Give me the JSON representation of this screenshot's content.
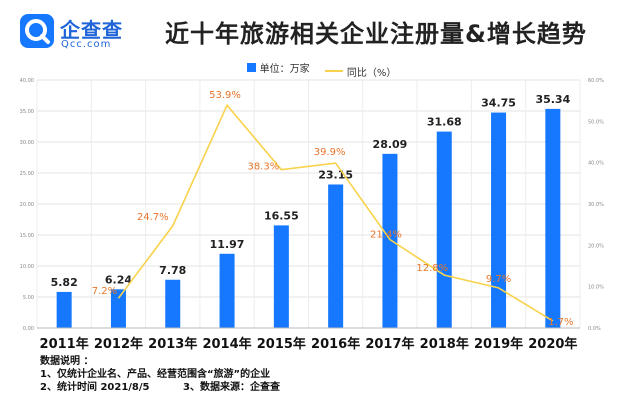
{
  "header": {
    "logo_cn": "企查查",
    "logo_en": "Qcc.com",
    "title": "近十年旅游相关企业注册量&增长趋势"
  },
  "legend": {
    "bar_label": "单位：万家",
    "line_label": "同比（%）"
  },
  "notes": {
    "heading": "数据说明 ：",
    "line1": "1、仅统计企业名、产品、经营范围含“旅游”的企业",
    "line2a": "2、统计时间  2021/8/5",
    "line2b": "3、数据来源：企查查"
  },
  "chart_data": {
    "type": "bar",
    "title": "近十年旅游相关企业注册量&增长趋势",
    "categories": [
      "2011年",
      "2012年",
      "2013年",
      "2014年",
      "2015年",
      "2016年",
      "2017年",
      "2018年",
      "2019年",
      "2020年"
    ],
    "series": [
      {
        "name": "单位：万家",
        "type": "bar",
        "values": [
          5.82,
          6.24,
          7.78,
          11.97,
          16.55,
          23.15,
          28.09,
          31.68,
          34.75,
          35.34
        ],
        "labels": [
          "5.82",
          "6.24",
          "7.78",
          "11.97",
          "16.55",
          "23.15",
          "28.09",
          "31.68",
          "34.75",
          "35.34"
        ],
        "color": "#1677ff"
      },
      {
        "name": "同比（%）",
        "type": "line",
        "values": [
          null,
          7.2,
          24.7,
          53.9,
          38.3,
          39.9,
          21.4,
          12.8,
          9.7,
          1.7
        ],
        "labels": [
          "",
          "7.2%",
          "24.7%",
          "53.9%",
          "38.3%",
          "39.9%",
          "21.4%",
          "12.8%",
          "9.7%",
          "1.7%"
        ],
        "color": "#f8d24b",
        "label_color": "#e8762b"
      }
    ],
    "y_left": {
      "ylim": [
        0,
        40
      ],
      "ticks": [
        "0.00",
        "5.00",
        "10.00",
        "15.00",
        "20.00",
        "25.00",
        "30.00",
        "35.00",
        "40.00"
      ]
    },
    "y_right": {
      "ylim": [
        0,
        60
      ],
      "ticks": [
        "0.0%",
        "10.0%",
        "20.0%",
        "30.0%",
        "40.0%",
        "50.0%",
        "60.0%"
      ]
    },
    "grid": true,
    "legend_position": "top"
  }
}
